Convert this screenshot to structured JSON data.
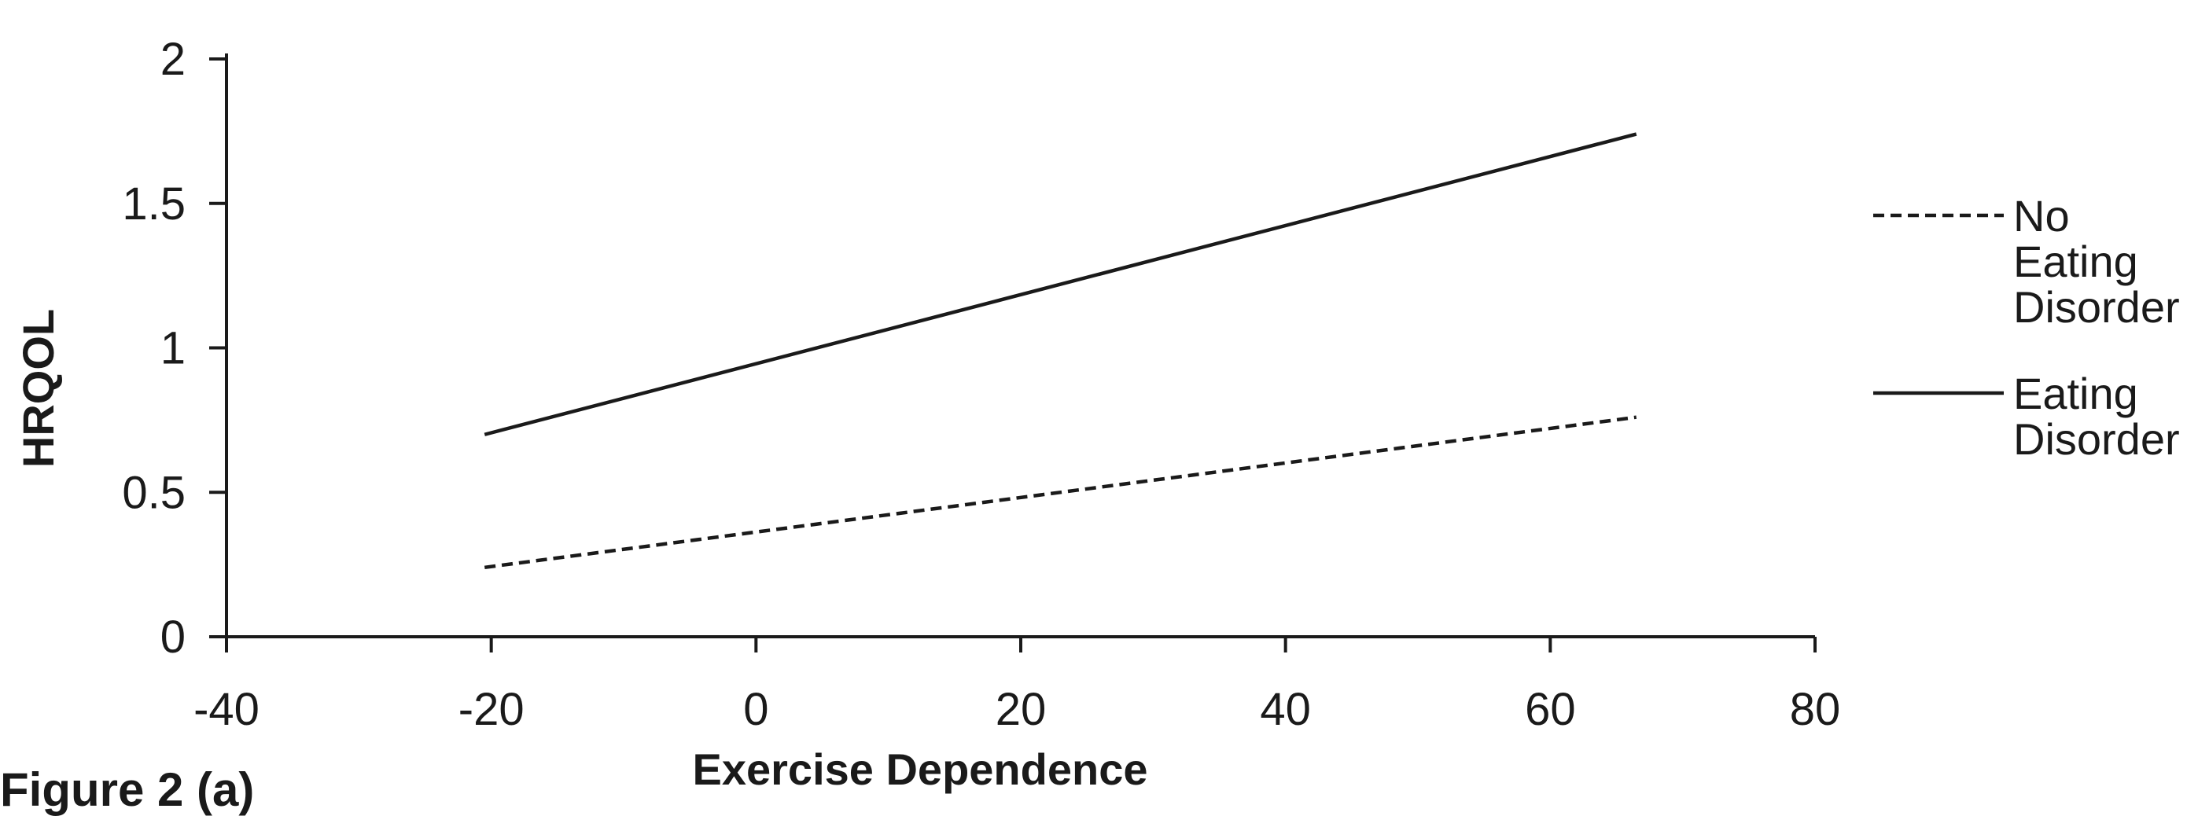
{
  "figure_label": "Figure 2 (a)",
  "chart_data": {
    "type": "line",
    "title": "",
    "xlabel": "Exercise Dependence",
    "ylabel": "HRQOL",
    "xlim": [
      -40,
      80
    ],
    "ylim": [
      0,
      2
    ],
    "x_ticks": [
      "-40",
      "-20",
      "0",
      "20",
      "40",
      "60",
      "80"
    ],
    "y_ticks": [
      "0",
      "0.5",
      "1",
      "1.5",
      "2"
    ],
    "grid": false,
    "legend_position": "right",
    "series": [
      {
        "name": "No Eating Disorder",
        "name_lines": [
          "No",
          "Eating",
          "Disorder"
        ],
        "style": "dashed",
        "color": "#1a1a1a",
        "x": [
          -20.5,
          66.5
        ],
        "y": [
          0.24,
          0.76
        ]
      },
      {
        "name": "Eating Disorder",
        "name_lines": [
          "Eating",
          "Disorder"
        ],
        "style": "solid",
        "color": "#1a1a1a",
        "x": [
          -20.5,
          66.5
        ],
        "y": [
          0.7,
          1.74
        ]
      }
    ]
  }
}
